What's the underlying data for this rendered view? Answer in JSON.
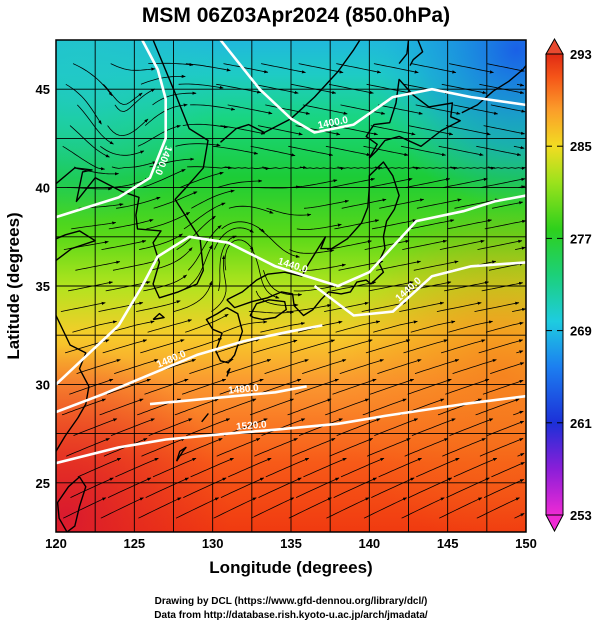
{
  "title": "MSM 06Z03Apr2024 (850.0hPa)",
  "xlabel": "Longitude (degrees)",
  "ylabel": "Latitude  (degrees)",
  "x_ticks": [
    "120",
    "125",
    "130",
    "135",
    "140",
    "145",
    "150"
  ],
  "y_ticks": [
    "25",
    "30",
    "35",
    "40",
    "45"
  ],
  "colorbar": {
    "min": 253,
    "max": 293,
    "ticks": [
      "253",
      "261",
      "269",
      "277",
      "285",
      "293"
    ]
  },
  "credits": {
    "line1": "Drawing by DCL (https://www.gfd-dennou.org/library/dcl/)",
    "line2": "Data from http://database.rish.kyoto-u.ac.jp/arch/jmadata/"
  },
  "colors": {
    "background": "#ffffff",
    "coast": "#000000",
    "grid": "#000000",
    "streamline": "#000000",
    "contour": "#ffffff"
  },
  "chart_data": {
    "type": "heatmap",
    "title": "MSM 06Z03Apr2024 (850.0hPa)",
    "xlabel": "Longitude (degrees)",
    "ylabel": "Latitude  (degrees)",
    "xlim": [
      120,
      150
    ],
    "ylim": [
      22.5,
      47.5
    ],
    "x_ticks": [
      120,
      125,
      130,
      135,
      140,
      145,
      150
    ],
    "y_ticks": [
      25,
      30,
      35,
      40,
      45
    ],
    "grid": true,
    "colorbar": {
      "min": 253,
      "max": 293,
      "ticks": [
        253,
        261,
        269,
        277,
        285,
        293
      ],
      "placement": "right"
    },
    "shading_estimate": [
      {
        "lon": 120,
        "lat": 24,
        "value": 293
      },
      {
        "lon": 130,
        "lat": 26,
        "value": 289
      },
      {
        "lon": 140,
        "lat": 26,
        "value": 288
      },
      {
        "lon": 150,
        "lat": 26,
        "value": 287
      },
      {
        "lon": 130,
        "lat": 33,
        "value": 283
      },
      {
        "lon": 145,
        "lat": 32,
        "value": 284
      },
      {
        "lon": 130,
        "lat": 38,
        "value": 277
      },
      {
        "lon": 145,
        "lat": 40,
        "value": 278
      },
      {
        "lon": 125,
        "lat": 44,
        "value": 275
      },
      {
        "lon": 148,
        "lat": 46,
        "value": 265
      },
      {
        "lon": 121,
        "lat": 45,
        "value": 272
      }
    ],
    "contours": [
      {
        "label": "1400.0",
        "points": [
          [
            125.5,
            47.5
          ],
          [
            126.5,
            46
          ],
          [
            127,
            44.5
          ],
          [
            127,
            42.5
          ],
          [
            126,
            40.5
          ],
          [
            124,
            39.5
          ],
          [
            122,
            39
          ],
          [
            120,
            38.5
          ]
        ]
      },
      {
        "label": "1400.0",
        "points": [
          [
            130.5,
            47.5
          ],
          [
            133,
            45
          ],
          [
            135,
            43.5
          ],
          [
            136.5,
            42.8
          ],
          [
            139,
            43.2
          ],
          [
            141.5,
            44.6
          ],
          [
            144,
            45
          ],
          [
            146.5,
            44.6
          ],
          [
            150,
            44.2
          ]
        ]
      },
      {
        "label": "1440.0",
        "points": [
          [
            120,
            30
          ],
          [
            122,
            31.5
          ],
          [
            124,
            33
          ],
          [
            125.5,
            35
          ],
          [
            126.5,
            36.5
          ],
          [
            128.5,
            37.5
          ],
          [
            131,
            37.2
          ],
          [
            134,
            36
          ],
          [
            136,
            35.5
          ],
          [
            138,
            35
          ],
          [
            140,
            35.7
          ],
          [
            141.5,
            37
          ],
          [
            143,
            38.3
          ],
          [
            146,
            38.8
          ],
          [
            148,
            39.3
          ],
          [
            150,
            39.6
          ]
        ]
      },
      {
        "label": "1440.0",
        "points": [
          [
            136.5,
            35
          ],
          [
            139,
            33.5
          ],
          [
            141.5,
            33.7
          ],
          [
            144,
            35.5
          ],
          [
            146.5,
            36
          ],
          [
            150,
            36.2
          ]
        ]
      },
      {
        "label": "1480.0",
        "points": [
          [
            120,
            28.6
          ],
          [
            123,
            29.5
          ],
          [
            126,
            30.5
          ],
          [
            129,
            31.5
          ],
          [
            132,
            32.2
          ],
          [
            135,
            32.7
          ],
          [
            137,
            33
          ]
        ]
      },
      {
        "label": "1480.0",
        "points": [
          [
            126,
            29
          ],
          [
            130,
            29.3
          ],
          [
            134,
            29.6
          ],
          [
            136,
            29.9
          ]
        ]
      },
      {
        "label": "1520.0",
        "points": [
          [
            120,
            26
          ],
          [
            124,
            26.8
          ],
          [
            127,
            27.2
          ],
          [
            131,
            27.5
          ],
          [
            134,
            27.7
          ],
          [
            138,
            28
          ],
          [
            141,
            28.4
          ],
          [
            146,
            29
          ],
          [
            150,
            29.4
          ]
        ]
      }
    ]
  }
}
